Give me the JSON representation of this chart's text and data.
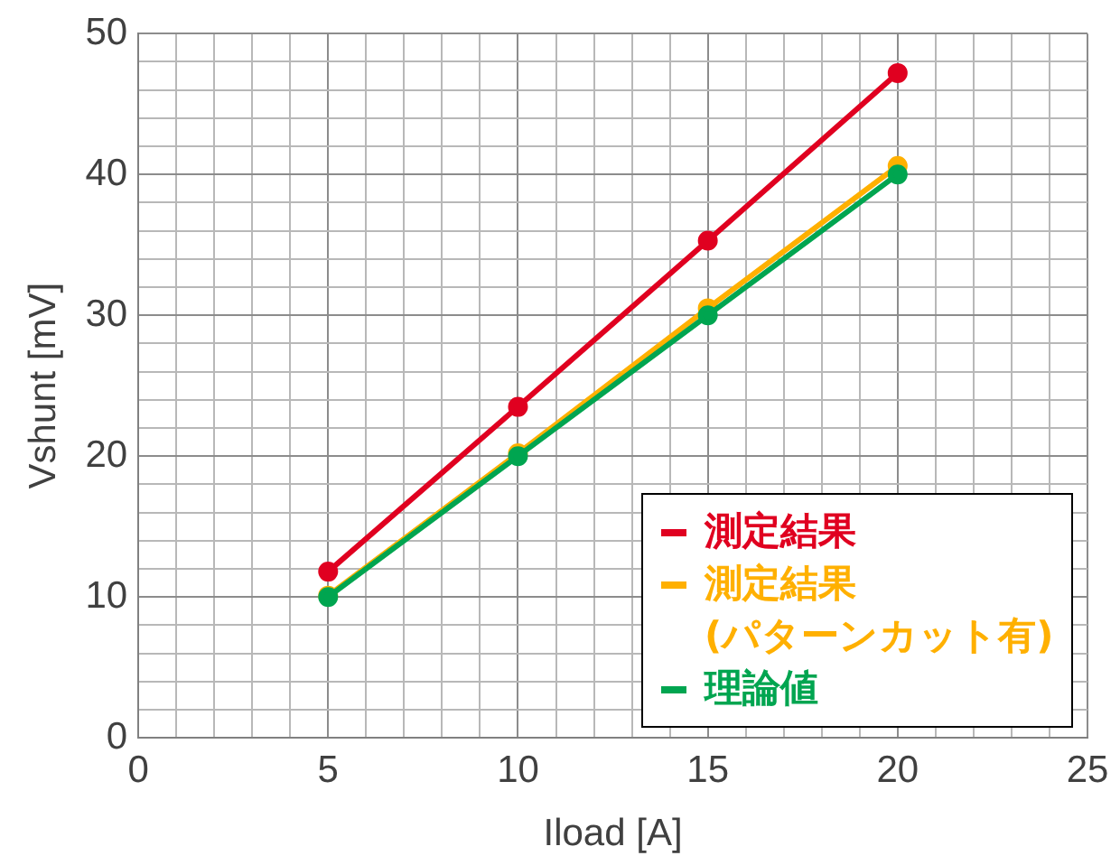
{
  "chart_data": {
    "type": "line",
    "xlabel": "Iload [A]",
    "ylabel": "Vshunt [mV]",
    "x": [
      5,
      10,
      15,
      20
    ],
    "series": [
      {
        "name": "測定結果",
        "color": "#e00020",
        "values": [
          11.8,
          23.5,
          35.3,
          47.2
        ]
      },
      {
        "name": "測定結果\n(パターンカット有)",
        "color": "#ffb000",
        "values": [
          10.1,
          20.2,
          30.5,
          40.6
        ]
      },
      {
        "name": "理論値",
        "color": "#00a550",
        "values": [
          10,
          20,
          30,
          40
        ]
      }
    ],
    "xlim": [
      0,
      25
    ],
    "xticks": [
      0,
      {
        "value": 1,
        "label": null
      },
      {
        "value": 2,
        "label": null
      },
      {
        "value": 3,
        "label": null
      },
      {
        "value": 4,
        "label": null
      },
      5,
      {
        "value": 6,
        "label": null
      },
      {
        "value": 7,
        "label": null
      },
      {
        "value": 8,
        "label": null
      },
      {
        "value": 9,
        "label": null
      },
      10,
      {
        "value": 11,
        "label": null
      },
      {
        "value": 12,
        "label": null
      },
      {
        "value": 13,
        "label": null
      },
      {
        "value": 14,
        "label": null
      },
      15,
      {
        "value": 16,
        "label": null
      },
      {
        "value": 17,
        "label": null
      },
      {
        "value": 18,
        "label": null
      },
      {
        "value": 19,
        "label": null
      },
      20,
      {
        "value": 21,
        "label": null
      },
      {
        "value": 22,
        "label": null
      },
      {
        "value": 23,
        "label": null
      },
      {
        "value": 24,
        "label": null
      },
      25
    ],
    "ylim": [
      0,
      50
    ],
    "yticks": [
      0,
      {
        "value": 2,
        "label": null
      },
      {
        "value": 4,
        "label": null
      },
      {
        "value": 6,
        "label": null
      },
      {
        "value": 8,
        "label": null
      },
      10,
      {
        "value": 12,
        "label": null
      },
      {
        "value": 14,
        "label": null
      },
      {
        "value": 16,
        "label": null
      },
      {
        "value": 18,
        "label": null
      },
      20,
      {
        "value": 22,
        "label": null
      },
      {
        "value": 24,
        "label": null
      },
      {
        "value": 26,
        "label": null
      },
      {
        "value": 28,
        "label": null
      },
      30,
      {
        "value": 32,
        "label": null
      },
      {
        "value": 34,
        "label": null
      },
      {
        "value": 36,
        "label": null
      },
      {
        "value": 38,
        "label": null
      },
      40,
      {
        "value": 42,
        "label": null
      },
      {
        "value": 44,
        "label": null
      },
      {
        "value": 46,
        "label": null
      },
      {
        "value": 48,
        "label": null
      },
      50
    ],
    "grid": true,
    "legend": "bottom right",
    "marker": "circle",
    "line_style": "solid"
  }
}
